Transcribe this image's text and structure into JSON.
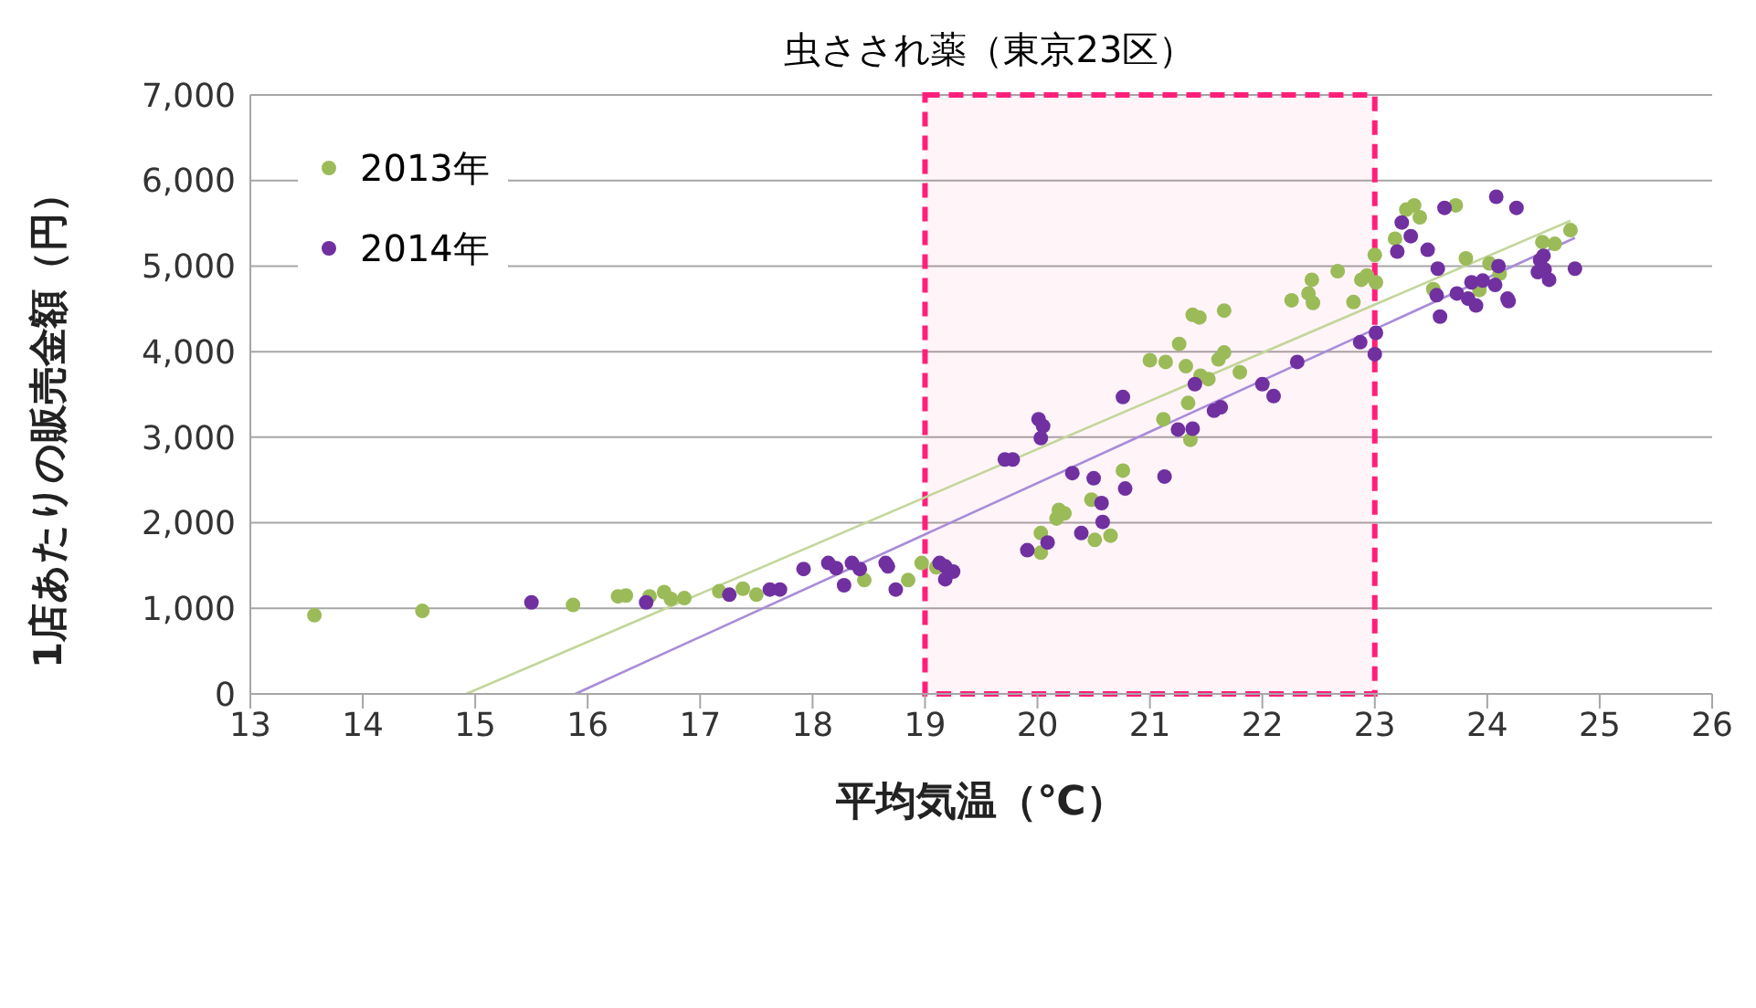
{
  "chart_data": {
    "type": "scatter",
    "title": "虫さされ薬（東京23区）",
    "xlabel": "平均気温（℃）",
    "ylabel": "1店あたりの販売金額（円）",
    "xlim": [
      13,
      26
    ],
    "xticks": [
      13,
      14,
      15,
      16,
      17,
      18,
      19,
      20,
      21,
      22,
      23,
      24,
      25,
      26
    ],
    "ylim": [
      0,
      7000
    ],
    "yticks": [
      0,
      {
        "value": 1000,
        "label": "1,000"
      },
      {
        "value": 2000,
        "label": "2,000"
      },
      {
        "value": 3000,
        "label": "3,000"
      },
      {
        "value": 4000,
        "label": "4,000"
      },
      {
        "value": 5000,
        "label": "5,000"
      },
      {
        "value": 6000,
        "label": "6,000"
      },
      {
        "value": 7000,
        "label": "7,000"
      }
    ],
    "grid": "y",
    "legend": "top left",
    "marker": "circle",
    "bands": [
      {
        "axis": "x",
        "from": 19,
        "to": 23,
        "color": "#ff1f7a"
      }
    ],
    "series": [
      {
        "name": "2013年",
        "color": "#9bbb59",
        "x": [
          13.57,
          14.53,
          15.87,
          16.27,
          16.34,
          16.55,
          16.68,
          16.74,
          16.86,
          17.17,
          17.38,
          17.5,
          18.46,
          18.85,
          18.97,
          19.1,
          20.03,
          20.03,
          20.17,
          20.24,
          20.19,
          20.51,
          20.65,
          20.48,
          20.76,
          21.12,
          21.34,
          21.36,
          21.0,
          21.14,
          21.26,
          21.32,
          21.45,
          21.52,
          21.61,
          21.66,
          21.8,
          21.38,
          21.44,
          21.66,
          22.26,
          22.41,
          22.45,
          22.44,
          22.67,
          22.81,
          22.88,
          22.93,
          23.01,
          23.0,
          23.18,
          23.28,
          23.35,
          23.4,
          23.72,
          23.81,
          23.52,
          24.02,
          23.93,
          24.11,
          24.49,
          24.6,
          24.74
        ],
        "values": [
          920,
          970,
          1040,
          1140,
          1150,
          1140,
          1190,
          1110,
          1120,
          1200,
          1230,
          1160,
          1330,
          1330,
          1530,
          1480,
          1650,
          1880,
          2050,
          2110,
          2150,
          1800,
          1850,
          2270,
          2610,
          3210,
          3400,
          2970,
          3900,
          3880,
          4090,
          3830,
          3720,
          3680,
          3910,
          3990,
          3760,
          4430,
          4400,
          4480,
          4600,
          4680,
          4570,
          4840,
          4940,
          4580,
          4840,
          4890,
          4810,
          5130,
          5320,
          5660,
          5710,
          5570,
          5710,
          5090,
          4730,
          5030,
          4720,
          4910,
          5280,
          5260,
          5420
        ]
      },
      {
        "name": "2014年",
        "color": "#7030a0",
        "x": [
          15.5,
          16.52,
          17.26,
          17.62,
          17.71,
          17.92,
          18.14,
          18.21,
          18.28,
          18.35,
          18.42,
          18.65,
          18.67,
          18.74,
          19.13,
          19.18,
          19.18,
          19.25,
          19.71,
          19.78,
          19.91,
          20.09,
          20.01,
          20.05,
          20.03,
          20.31,
          20.39,
          20.5,
          20.57,
          20.58,
          20.78,
          20.76,
          21.13,
          21.25,
          21.38,
          21.4,
          21.57,
          21.63,
          22.0,
          22.1,
          22.31,
          22.87,
          23.01,
          23.0,
          23.24,
          23.32,
          23.2,
          23.47,
          23.62,
          23.56,
          23.55,
          23.58,
          23.73,
          23.83,
          23.9,
          23.86,
          23.96,
          24.07,
          24.08,
          24.1,
          24.18,
          24.19,
          24.26,
          24.45,
          24.47,
          24.5,
          24.51,
          24.55,
          24.78
        ],
        "values": [
          1070,
          1070,
          1160,
          1220,
          1220,
          1460,
          1530,
          1470,
          1270,
          1530,
          1460,
          1530,
          1490,
          1220,
          1530,
          1490,
          1340,
          1430,
          2740,
          2740,
          1680,
          1770,
          3210,
          3130,
          2990,
          2580,
          1880,
          2520,
          2230,
          2010,
          2400,
          3470,
          2540,
          3090,
          3100,
          3620,
          3310,
          3350,
          3620,
          3480,
          3880,
          4110,
          4220,
          3970,
          5510,
          5350,
          5170,
          5190,
          5680,
          4970,
          4660,
          4410,
          4680,
          4620,
          4540,
          4810,
          4830,
          4780,
          5810,
          5000,
          4620,
          4590,
          5680,
          4930,
          5070,
          5120,
          4960,
          4840,
          4970
        ]
      },
      {
        "type": "line",
        "color": "#c3d69b",
        "marker": "none",
        "x": [
          14.92,
          24.74
        ],
        "values": [
          0,
          5530
        ]
      },
      {
        "type": "line",
        "color": "#a98bd8",
        "marker": "none",
        "x": [
          15.89,
          24.78
        ],
        "values": [
          0,
          5330
        ]
      }
    ]
  }
}
